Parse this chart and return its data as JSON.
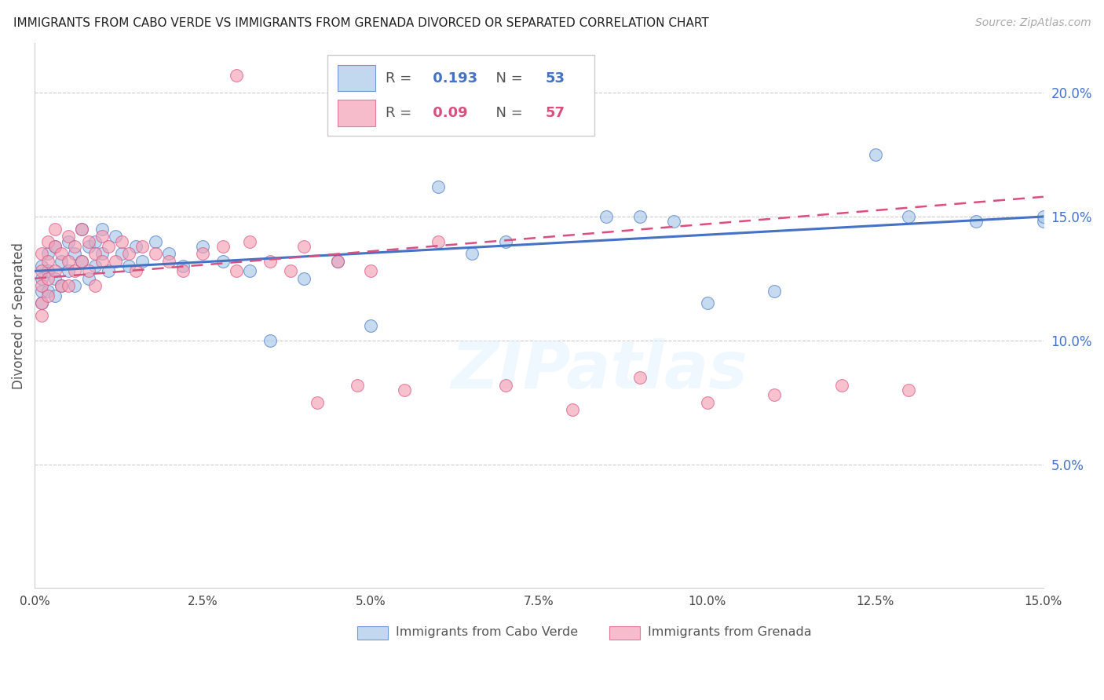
{
  "title": "IMMIGRANTS FROM CABO VERDE VS IMMIGRANTS FROM GRENADA DIVORCED OR SEPARATED CORRELATION CHART",
  "source": "Source: ZipAtlas.com",
  "ylabel": "Divorced or Separated",
  "xlim": [
    0.0,
    0.15
  ],
  "ylim": [
    0.0,
    0.22
  ],
  "xtick_positions": [
    0.0,
    0.025,
    0.05,
    0.075,
    0.1,
    0.125,
    0.15
  ],
  "xtick_labels": [
    "0.0%",
    "2.5%",
    "5.0%",
    "7.5%",
    "10.0%",
    "12.5%",
    "15.0%"
  ],
  "ytick_right_positions": [
    0.05,
    0.1,
    0.15,
    0.2
  ],
  "ytick_right_labels": [
    "5.0%",
    "10.0%",
    "15.0%",
    "20.0%"
  ],
  "color_blue": "#a8c8e8",
  "color_pink": "#f4a0b5",
  "line_blue": "#4472c4",
  "line_pink": "#d94f7e",
  "R_blue": 0.193,
  "N_blue": 53,
  "R_pink": 0.09,
  "N_pink": 57,
  "legend_label_blue": "Immigrants from Cabo Verde",
  "legend_label_pink": "Immigrants from Grenada",
  "watermark": "ZIPatlas",
  "blue_line_y0": 0.128,
  "blue_line_y1": 0.15,
  "pink_line_y0": 0.125,
  "pink_line_y1": 0.158,
  "blue_x": [
    0.001,
    0.001,
    0.001,
    0.001,
    0.002,
    0.002,
    0.002,
    0.003,
    0.003,
    0.003,
    0.004,
    0.004,
    0.005,
    0.005,
    0.006,
    0.006,
    0.007,
    0.007,
    0.008,
    0.008,
    0.009,
    0.009,
    0.01,
    0.01,
    0.011,
    0.012,
    0.013,
    0.014,
    0.015,
    0.016,
    0.018,
    0.02,
    0.022,
    0.025,
    0.028,
    0.032,
    0.035,
    0.04,
    0.045,
    0.05,
    0.06,
    0.065,
    0.07,
    0.085,
    0.09,
    0.095,
    0.1,
    0.11,
    0.125,
    0.13,
    0.14,
    0.15,
    0.15
  ],
  "blue_y": [
    0.13,
    0.125,
    0.12,
    0.115,
    0.135,
    0.128,
    0.12,
    0.138,
    0.125,
    0.118,
    0.132,
    0.122,
    0.14,
    0.128,
    0.135,
    0.122,
    0.145,
    0.132,
    0.138,
    0.125,
    0.14,
    0.13,
    0.145,
    0.135,
    0.128,
    0.142,
    0.135,
    0.13,
    0.138,
    0.132,
    0.14,
    0.135,
    0.13,
    0.138,
    0.132,
    0.128,
    0.1,
    0.125,
    0.132,
    0.106,
    0.162,
    0.135,
    0.14,
    0.15,
    0.15,
    0.148,
    0.115,
    0.12,
    0.175,
    0.15,
    0.148,
    0.148,
    0.15
  ],
  "pink_x": [
    0.001,
    0.001,
    0.001,
    0.001,
    0.001,
    0.002,
    0.002,
    0.002,
    0.002,
    0.003,
    0.003,
    0.003,
    0.004,
    0.004,
    0.005,
    0.005,
    0.005,
    0.006,
    0.006,
    0.007,
    0.007,
    0.008,
    0.008,
    0.009,
    0.009,
    0.01,
    0.01,
    0.011,
    0.012,
    0.013,
    0.014,
    0.015,
    0.016,
    0.018,
    0.02,
    0.022,
    0.025,
    0.028,
    0.03,
    0.032,
    0.035,
    0.038,
    0.04,
    0.042,
    0.045,
    0.048,
    0.05,
    0.055,
    0.06,
    0.07,
    0.08,
    0.09,
    0.1,
    0.11,
    0.12,
    0.13,
    0.03
  ],
  "pink_y": [
    0.135,
    0.128,
    0.122,
    0.115,
    0.11,
    0.14,
    0.132,
    0.125,
    0.118,
    0.145,
    0.138,
    0.128,
    0.135,
    0.122,
    0.142,
    0.132,
    0.122,
    0.138,
    0.128,
    0.145,
    0.132,
    0.14,
    0.128,
    0.135,
    0.122,
    0.142,
    0.132,
    0.138,
    0.132,
    0.14,
    0.135,
    0.128,
    0.138,
    0.135,
    0.132,
    0.128,
    0.135,
    0.138,
    0.128,
    0.14,
    0.132,
    0.128,
    0.138,
    0.075,
    0.132,
    0.082,
    0.128,
    0.08,
    0.14,
    0.082,
    0.072,
    0.085,
    0.075,
    0.078,
    0.082,
    0.08,
    0.207
  ]
}
